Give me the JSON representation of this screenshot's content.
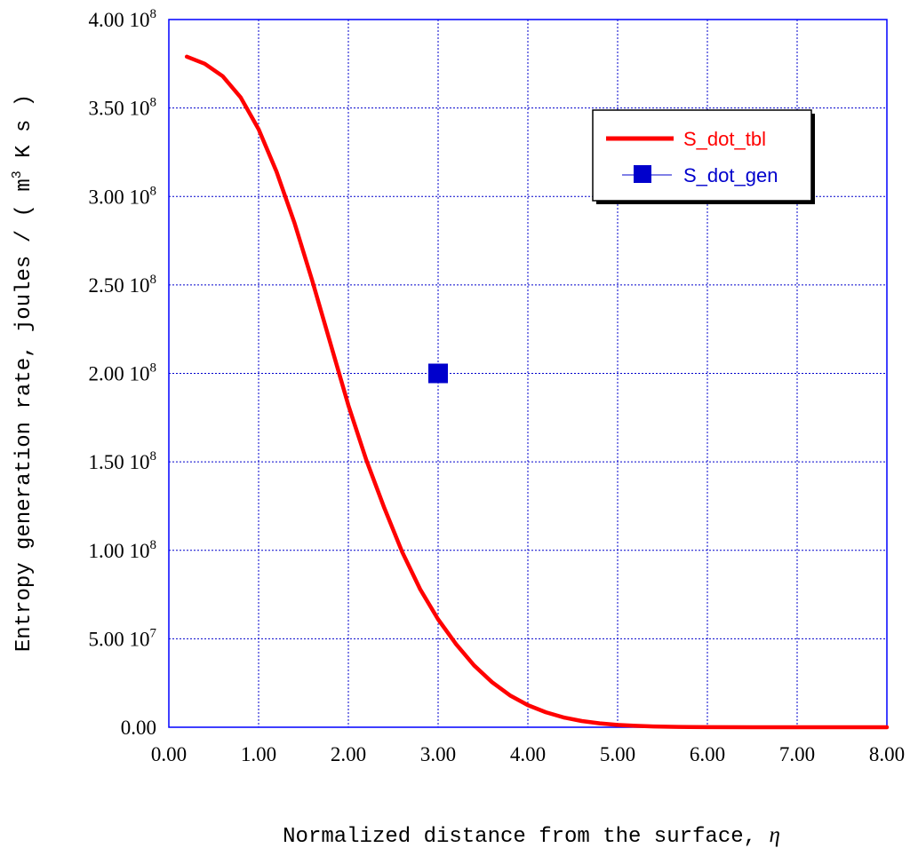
{
  "colors": {
    "frame": "#0000ff",
    "grid": "#0000cc",
    "tbl_series": "#ff0000",
    "gen_series": "#0000cc"
  },
  "chart_data": {
    "type": "line",
    "xlabel": "Normalized distance from the surface, ",
    "xlabel_symbol": "η",
    "ylabel": "Entropy generation rate, joules / ( m",
    "ylabel_sup": "3",
    "ylabel_tail": " K s )",
    "xlim": [
      0,
      8
    ],
    "ylim": [
      0,
      400000000
    ],
    "grid": true,
    "legend_position": "top-right",
    "x_ticks": [
      {
        "value": 0,
        "label": "0.00"
      },
      {
        "value": 1,
        "label": "1.00"
      },
      {
        "value": 2,
        "label": "2.00"
      },
      {
        "value": 3,
        "label": "3.00"
      },
      {
        "value": 4,
        "label": "4.00"
      },
      {
        "value": 5,
        "label": "5.00"
      },
      {
        "value": 6,
        "label": "6.00"
      },
      {
        "value": 7,
        "label": "7.00"
      },
      {
        "value": 8,
        "label": "8.00"
      }
    ],
    "y_ticks": [
      {
        "value": 0,
        "mantissa": "0.00",
        "exp": ""
      },
      {
        "value": 50000000,
        "mantissa": "5.00 10",
        "exp": "7"
      },
      {
        "value": 100000000,
        "mantissa": "1.00 10",
        "exp": "8"
      },
      {
        "value": 150000000,
        "mantissa": "1.50 10",
        "exp": "8"
      },
      {
        "value": 200000000,
        "mantissa": "2.00 10",
        "exp": "8"
      },
      {
        "value": 250000000,
        "mantissa": "2.50 10",
        "exp": "8"
      },
      {
        "value": 300000000,
        "mantissa": "3.00 10",
        "exp": "8"
      },
      {
        "value": 350000000,
        "mantissa": "3.50 10",
        "exp": "8"
      },
      {
        "value": 400000000,
        "mantissa": "4.00 10",
        "exp": "8"
      }
    ],
    "series": [
      {
        "name": "S_dot_tbl",
        "kind": "line",
        "x": [
          0.2,
          0.4,
          0.6,
          0.8,
          1.0,
          1.2,
          1.4,
          1.6,
          1.8,
          2.0,
          2.2,
          2.4,
          2.6,
          2.8,
          3.0,
          3.2,
          3.4,
          3.6,
          3.8,
          4.0,
          4.2,
          4.4,
          4.6,
          4.8,
          5.0,
          5.2,
          5.4,
          5.6,
          5.8,
          6.0,
          6.5,
          7.0,
          7.5,
          8.0
        ],
        "y": [
          379000000,
          375000000,
          368000000,
          356000000,
          338000000,
          314000000,
          285000000,
          252000000,
          217000000,
          182000000,
          151000000,
          124000000,
          99000000,
          78000000,
          61000000,
          47000000,
          35000000,
          25500000,
          18000000,
          12500000,
          8500000,
          5500000,
          3500000,
          2200000,
          1300000,
          800000,
          450000,
          250000,
          130000,
          70000,
          15000,
          3000,
          600,
          100
        ]
      },
      {
        "name": "S_dot_gen",
        "kind": "scatter",
        "marker": "square",
        "x": [
          3.0
        ],
        "y": [
          200000000
        ]
      }
    ]
  }
}
